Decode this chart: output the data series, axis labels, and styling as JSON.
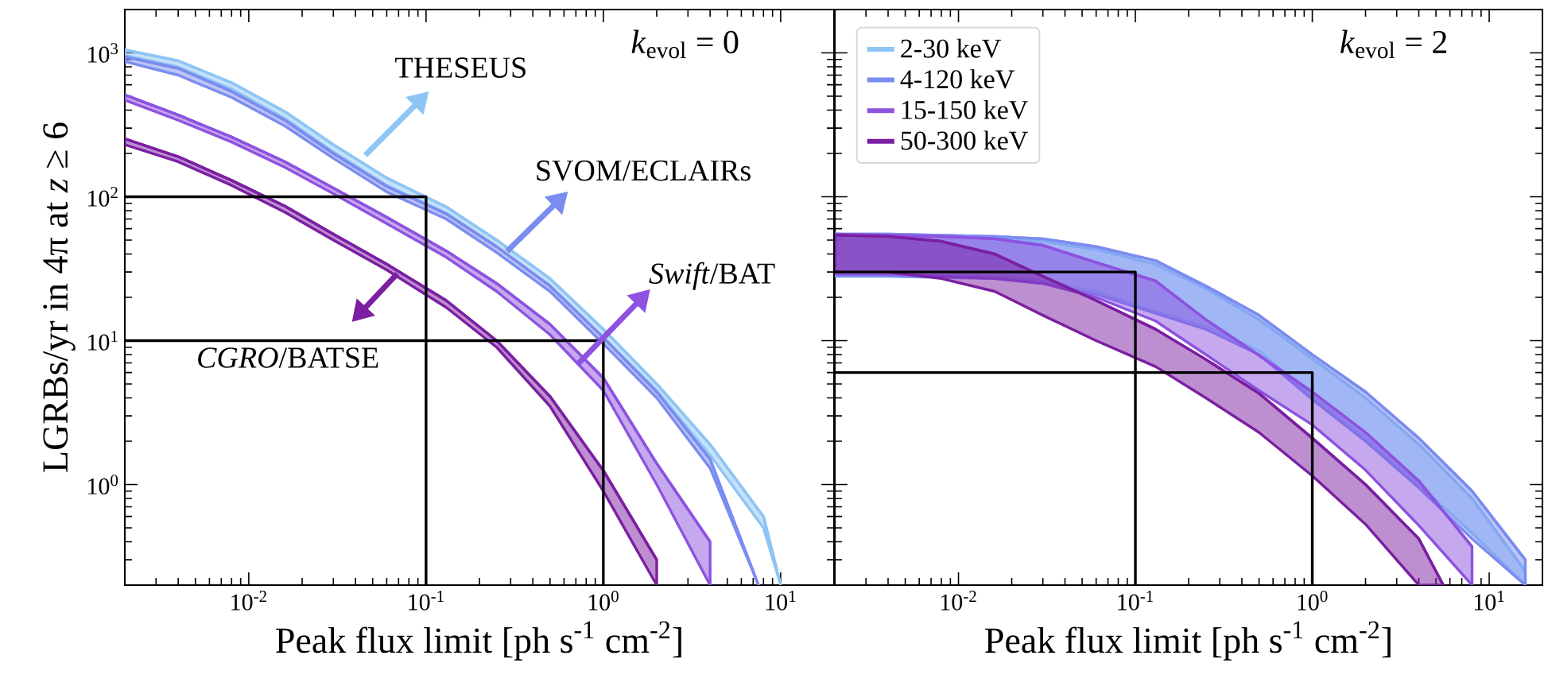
{
  "chart_data": [
    {
      "type": "line",
      "xlabel": "Peak flux limit [ph s$^{-1}$ cm$^{-2}$]",
      "ylabel": "LGRBs/yr in 4π at *z* ≥ 6",
      "log": "xy",
      "xlim": [
        0.002,
        20
      ],
      "ylim": [
        0.2,
        2000
      ],
      "xticks": [
        {
          "value": 0.01,
          "label": "10$^{-2}$"
        },
        {
          "value": 0.1,
          "label": "10$^{-1}$"
        },
        {
          "value": 1,
          "label": "10$^{0}$"
        },
        {
          "value": 10,
          "label": "10$^{1}$"
        }
      ],
      "yticks": [
        {
          "value": 1,
          "label": "10$^{0}$"
        },
        {
          "value": 10,
          "label": "10$^{1}$"
        },
        {
          "value": 100,
          "label": "10$^{2}$"
        },
        {
          "value": 1000,
          "label": "10$^{3}$"
        }
      ],
      "annotations": [
        "*k*$_{evol}$ = 0",
        "THESEUS",
        "SVOM/ECLAIRs",
        "*Swift*/BAT",
        "*CGRO*/BATSE"
      ],
      "series": [
        {
          "color": "#8ec5f5",
          "x": [
            0.002,
            0.004,
            0.008,
            0.016,
            0.03,
            0.06,
            0.13,
            0.25,
            0.5,
            1,
            2,
            4,
            8,
            10
          ],
          "values": [
            1050,
            880,
            620,
            390,
            230,
            135,
            85,
            50,
            27,
            12,
            5,
            1.9,
            0.6,
            0.2
          ],
          "upper": [
            1050,
            880,
            620,
            390,
            230,
            135,
            85,
            50,
            27,
            12,
            5,
            1.9,
            0.6,
            0.2
          ],
          "lower": [
            960,
            800,
            560,
            350,
            205,
            120,
            77,
            45,
            24,
            10.5,
            4.5,
            1.6,
            0.5,
            0.2
          ]
        },
        {
          "color": "#7b8cf0",
          "x": [
            0.002,
            0.004,
            0.008,
            0.016,
            0.03,
            0.06,
            0.13,
            0.25,
            0.5,
            1,
            2,
            4,
            7.5
          ],
          "values": [
            940,
            780,
            540,
            340,
            200,
            118,
            76,
            45,
            24,
            10.5,
            4.4,
            1.5,
            0.2
          ],
          "upper": [
            940,
            780,
            540,
            340,
            200,
            118,
            76,
            45,
            24,
            10.5,
            4.4,
            1.5,
            0.2
          ],
          "lower": [
            870,
            700,
            490,
            310,
            185,
            108,
            70,
            41,
            22,
            9.5,
            4,
            1.3,
            0.2
          ]
        },
        {
          "color": "#8d52e0",
          "x": [
            0.002,
            0.004,
            0.008,
            0.016,
            0.03,
            0.06,
            0.13,
            0.25,
            0.5,
            1,
            2,
            4
          ],
          "values": [
            510,
            370,
            260,
            175,
            115,
            72,
            42,
            25,
            13,
            5.5,
            1.4,
            0.4
          ],
          "upper": [
            510,
            370,
            260,
            175,
            115,
            72,
            42,
            25,
            13,
            5.5,
            1.4,
            0.4
          ],
          "lower": [
            470,
            340,
            240,
            160,
            105,
            65,
            38,
            22,
            11,
            4.5,
            1.0,
            0.2
          ]
        },
        {
          "color": "#7b1fa2",
          "x": [
            0.002,
            0.004,
            0.008,
            0.016,
            0.03,
            0.06,
            0.13,
            0.25,
            0.5,
            1,
            2
          ],
          "values": [
            253,
            190,
            130,
            86,
            55,
            34,
            19,
            10,
            4.1,
            1.25,
            0.3
          ],
          "upper": [
            253,
            190,
            130,
            86,
            55,
            34,
            19,
            10,
            4.1,
            1.25,
            0.3
          ],
          "lower": [
            230,
            175,
            120,
            78,
            50,
            31,
            17,
            9,
            3.5,
            0.9,
            0.2
          ]
        },
        {
          "color": "#000000",
          "x": [
            0.002,
            0.1,
            0.1
          ],
          "values": [
            100,
            100,
            0.2
          ]
        },
        {
          "color": "#000000",
          "x": [
            0.002,
            1,
            1
          ],
          "values": [
            10,
            10,
            0.2
          ]
        }
      ]
    },
    {
      "type": "line",
      "xlabel": "Peak flux limit [ph s$^{-1}$ cm$^{-2}$]",
      "log": "xy",
      "xlim": [
        0.002,
        20
      ],
      "ylim": [
        0.2,
        2000
      ],
      "tick_labels": "x",
      "legend": "top left",
      "xticks": [
        {
          "value": 0.01,
          "label": "10$^{-2}$"
        },
        {
          "value": 0.1,
          "label": "10$^{-1}$"
        },
        {
          "value": 1,
          "label": "10$^{0}$"
        },
        {
          "value": 10,
          "label": "10$^{1}$"
        }
      ],
      "yticks": [
        {
          "value": 1,
          "label": null
        },
        {
          "value": 10,
          "label": null
        },
        {
          "value": 100,
          "label": null
        },
        {
          "value": 1000,
          "label": null
        }
      ],
      "annotations": [
        "*k*$_{evol}$ = 2"
      ],
      "series": [
        {
          "name": "2-30 keV",
          "color": "#8ec5f5",
          "x": [
            0.002,
            0.004,
            0.008,
            0.016,
            0.03,
            0.06,
            0.13,
            0.25,
            0.5,
            1,
            2,
            4,
            8,
            16
          ],
          "values": [
            54,
            54,
            53,
            52,
            49,
            43,
            34,
            23,
            14,
            7.5,
            4.0,
            1.9,
            0.8,
            0.25
          ],
          "upper": [
            54,
            54,
            53,
            52,
            49,
            43,
            34,
            23,
            14,
            7.5,
            4.0,
            1.9,
            0.8,
            0.25
          ],
          "lower": [
            29,
            29,
            28.5,
            28,
            26,
            22,
            16,
            12.6,
            8.5,
            4.1,
            2.1,
            1.0,
            0.46,
            0.2
          ]
        },
        {
          "name": "4-120 keV",
          "color": "#7b8cf0",
          "x": [
            0.002,
            0.004,
            0.008,
            0.016,
            0.03,
            0.06,
            0.13,
            0.25,
            0.5,
            1,
            2,
            4,
            8,
            16
          ],
          "values": [
            55,
            55,
            54,
            53,
            51,
            45,
            36,
            24,
            15,
            8,
            4.4,
            2.1,
            0.9,
            0.3
          ],
          "upper": [
            55,
            55,
            54,
            53,
            51,
            45,
            36,
            24,
            15,
            8,
            4.4,
            2.1,
            0.9,
            0.3
          ],
          "lower": [
            28,
            28,
            27.5,
            27,
            25,
            21,
            15.5,
            12,
            8,
            3.9,
            2.0,
            0.95,
            0.42,
            0.2
          ]
        },
        {
          "name": "15-150 keV",
          "color": "#8d52e0",
          "x": [
            0.002,
            0.004,
            0.008,
            0.016,
            0.03,
            0.06,
            0.13,
            0.25,
            0.5,
            1,
            2,
            4,
            8
          ],
          "values": [
            55,
            54,
            53,
            51,
            46,
            35,
            26,
            14,
            7.9,
            4.4,
            2.3,
            1.06,
            0.37
          ],
          "upper": [
            55,
            54,
            53,
            51,
            46,
            35,
            26,
            14,
            7.9,
            4.4,
            2.3,
            1.06,
            0.37
          ],
          "lower": [
            29,
            29,
            28,
            27,
            25,
            20,
            13.7,
            8,
            4.5,
            2.6,
            1.26,
            0.52,
            0.2
          ]
        },
        {
          "name": "50-300 keV",
          "color": "#7b1fa2",
          "x": [
            0.002,
            0.004,
            0.008,
            0.016,
            0.03,
            0.06,
            0.13,
            0.25,
            0.5,
            1,
            2,
            4,
            5.5
          ],
          "values": [
            54,
            53,
            49,
            40,
            28,
            19,
            12,
            7.4,
            4.3,
            2.1,
            1.0,
            0.42,
            0.2
          ],
          "upper": [
            54,
            53,
            49,
            40,
            28,
            19,
            12,
            7.4,
            4.3,
            2.1,
            1.0,
            0.42,
            0.2
          ],
          "lower": [
            30,
            30,
            27,
            22,
            15,
            10,
            6.6,
            4.0,
            2.3,
            1.15,
            0.53,
            0.2,
            0.2
          ]
        },
        {
          "color": "#000000",
          "x": [
            0.002,
            0.1,
            0.1
          ],
          "values": [
            30,
            30,
            0.2
          ]
        },
        {
          "color": "#000000",
          "x": [
            0.002,
            1,
            1
          ],
          "values": [
            6,
            6,
            0.2
          ]
        }
      ]
    }
  ]
}
